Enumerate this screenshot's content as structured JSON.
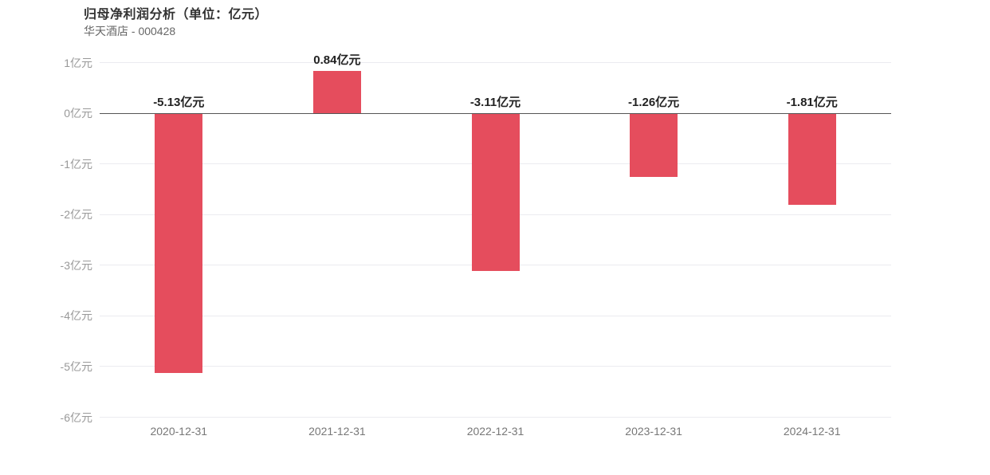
{
  "header": {
    "title": "归母净利润分析（单位：亿元）",
    "subtitle": "华天酒店 - 000428"
  },
  "chart_data": {
    "type": "bar",
    "title": "归母净利润分析（单位：亿元）",
    "subtitle": "华天酒店 - 000428",
    "unit": "亿元",
    "categories": [
      "2020-12-31",
      "2021-12-31",
      "2022-12-31",
      "2023-12-31",
      "2024-12-31"
    ],
    "values": [
      -5.13,
      0.84,
      -3.11,
      -1.26,
      -1.81
    ],
    "value_labels": [
      "-5.13亿元",
      "0.84亿元",
      "-3.11亿元",
      "-1.26亿元",
      "-1.81亿元"
    ],
    "ylim": [
      -6,
      1
    ],
    "yticks": [
      1,
      0,
      -1,
      -2,
      -3,
      -4,
      -5,
      -6
    ],
    "ytick_labels": [
      "1亿元",
      "0亿元",
      "-1亿元",
      "-2亿元",
      "-3亿元",
      "-4亿元",
      "-5亿元",
      "-6亿元"
    ],
    "grid": true,
    "legend_position": "none",
    "colors": {
      "bar": "#e54d5d",
      "gridline": "#ebebf0",
      "zero_line": "#555555",
      "title": "#333333",
      "subtitle": "#666666",
      "ytick_text": "#999999",
      "xtick_text": "#777777",
      "value_label": "#222222",
      "background": "#ffffff"
    }
  }
}
